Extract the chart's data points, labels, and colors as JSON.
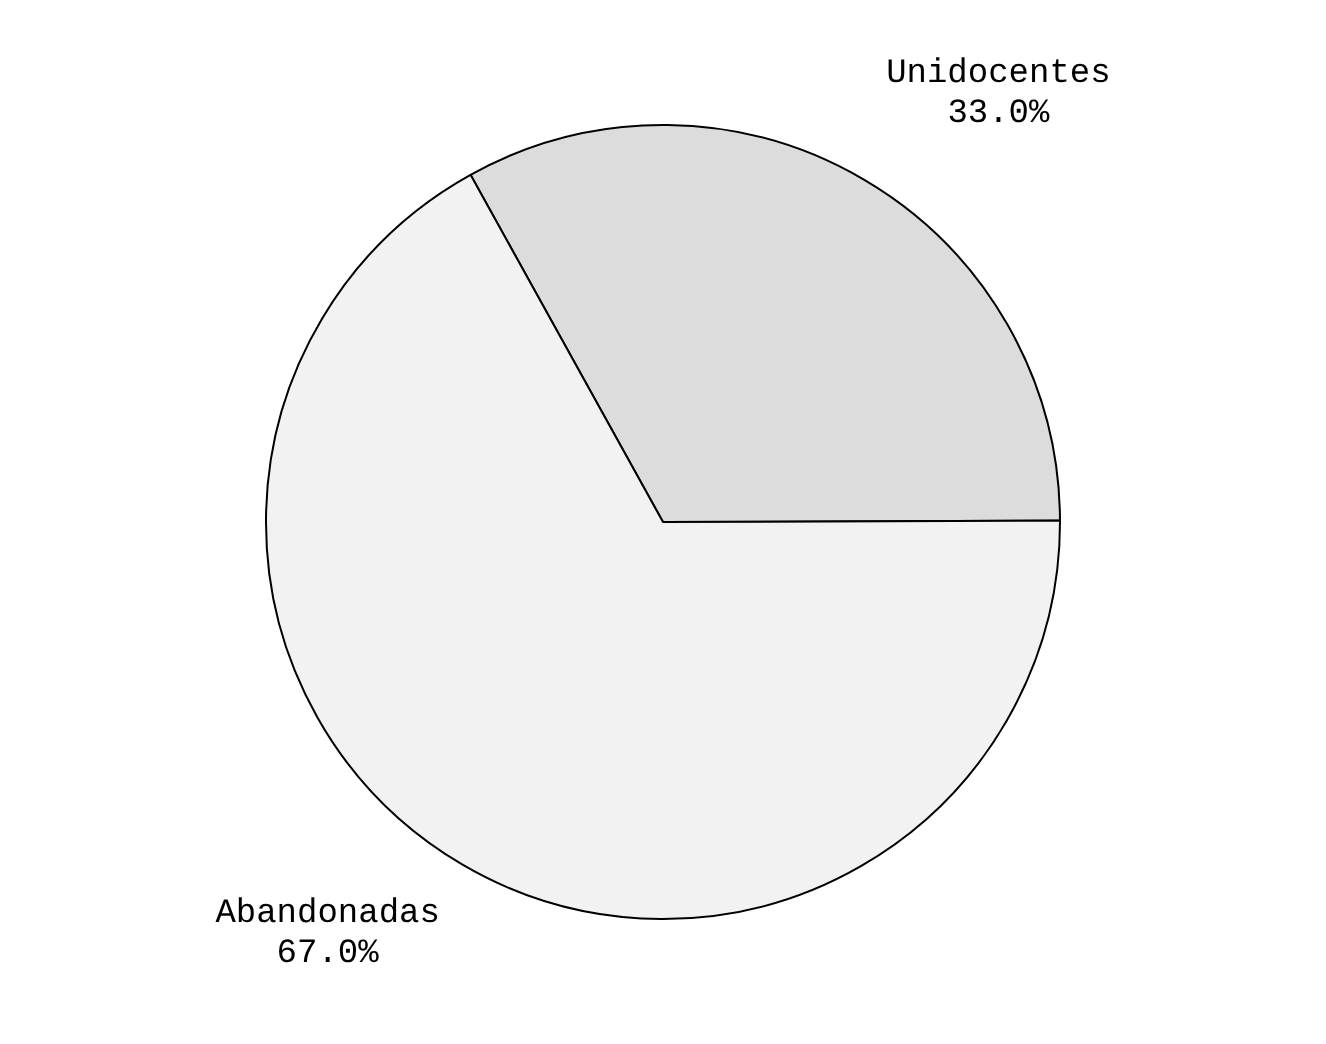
{
  "chart_data": {
    "type": "pie",
    "categories": [
      "Unidocentes",
      "Abandonadas"
    ],
    "values": [
      33.0,
      67.0
    ],
    "colors": [
      "#dcdcdc",
      "#f2f2f2"
    ],
    "value_labels": [
      "33.0%",
      "67.0%"
    ],
    "legend": false
  }
}
